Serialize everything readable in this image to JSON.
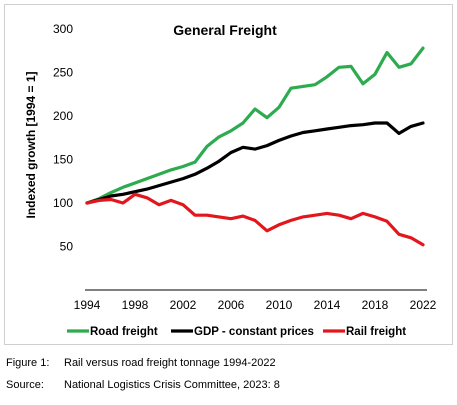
{
  "chart_data": {
    "type": "line",
    "title": "General Freight",
    "xlabel": "",
    "ylabel": "Indexed growth [1994 = 1]",
    "x": [
      1994,
      1995,
      1996,
      1997,
      1998,
      1999,
      2000,
      2001,
      2002,
      2003,
      2004,
      2005,
      2006,
      2007,
      2008,
      2009,
      2010,
      2011,
      2012,
      2013,
      2014,
      2015,
      2016,
      2017,
      2018,
      2019,
      2020,
      2021,
      2022
    ],
    "x_ticks": [
      "1994",
      "1998",
      "2002",
      "2006",
      "2010",
      "2014",
      "2018",
      "2022"
    ],
    "y_ticks": [
      "50",
      "100",
      "150",
      "200",
      "250",
      "300"
    ],
    "ylim": [
      0,
      300
    ],
    "xlim": [
      1994,
      2022
    ],
    "grid": false,
    "legend_position": "bottom",
    "series": [
      {
        "name": "Road freight",
        "color": "#2eaa4f",
        "values": [
          100,
          105,
          112,
          118,
          123,
          128,
          133,
          138,
          142,
          147,
          165,
          176,
          183,
          192,
          208,
          198,
          210,
          232,
          234,
          236,
          245,
          256,
          257,
          237,
          248,
          273,
          256,
          260,
          278
        ]
      },
      {
        "name": "GDP - constant prices",
        "color": "#000000",
        "values": [
          100,
          104,
          108,
          110,
          113,
          116,
          120,
          124,
          128,
          133,
          140,
          148,
          158,
          164,
          162,
          166,
          172,
          177,
          181,
          183,
          185,
          187,
          189,
          190,
          192,
          192,
          180,
          188,
          192
        ]
      },
      {
        "name": "Rail freight",
        "color": "#e3161c",
        "values": [
          100,
          103,
          104,
          100,
          110,
          106,
          98,
          103,
          98,
          86,
          86,
          84,
          82,
          85,
          80,
          68,
          75,
          80,
          84,
          86,
          88,
          86,
          82,
          88,
          84,
          79,
          64,
          60,
          52
        ]
      }
    ]
  },
  "caption": {
    "figure_key": "Figure 1:",
    "figure_text": "Rail versus road freight tonnage 1994-2022",
    "source_key": "Source:",
    "source_text": "National Logistics Crisis Committee, 2023: 8"
  }
}
